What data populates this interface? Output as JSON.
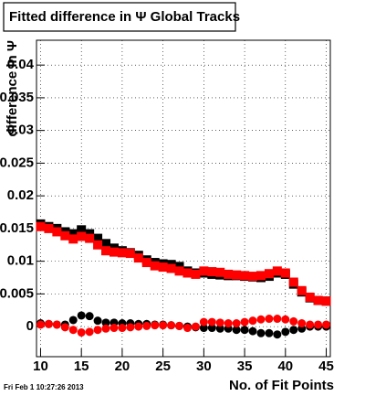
{
  "chart_data": {
    "type": "scatter",
    "title": "Fitted difference in Ψ   Global Tracks",
    "x_label": "No. of Fit Points",
    "y_label": "difference in Ψ",
    "footer": "Fri Feb  1 10:27:26 2013",
    "x": [
      10,
      11,
      12,
      13,
      14,
      15,
      16,
      17,
      18,
      19,
      20,
      21,
      22,
      23,
      24,
      25,
      26,
      27,
      28,
      29,
      30,
      31,
      32,
      33,
      34,
      35,
      36,
      37,
      38,
      39,
      40,
      41,
      42,
      43,
      44,
      45
    ],
    "series": [
      {
        "color": "#000000",
        "marker": "square",
        "values": [
          0.0157,
          0.0153,
          0.015,
          0.0145,
          0.0142,
          0.0148,
          0.0142,
          0.0135,
          0.0127,
          0.012,
          0.0116,
          0.0113,
          0.0109,
          0.0102,
          0.0098,
          0.0096,
          0.0095,
          0.0092,
          0.0085,
          0.0082,
          0.0082,
          0.008,
          0.0079,
          0.0078,
          0.0078,
          0.0077,
          0.0076,
          0.0075,
          0.0077,
          0.0082,
          0.008,
          0.0065,
          0.0053,
          0.0044,
          0.004,
          0.0039
        ]
      },
      {
        "color": "#ff0000",
        "marker": "square",
        "values": [
          0.0153,
          0.015,
          0.0145,
          0.0139,
          0.0134,
          0.0138,
          0.0135,
          0.0125,
          0.0116,
          0.0114,
          0.0113,
          0.0112,
          0.0105,
          0.0098,
          0.0093,
          0.0091,
          0.0089,
          0.0085,
          0.0082,
          0.008,
          0.0085,
          0.0084,
          0.0083,
          0.008,
          0.0079,
          0.0078,
          0.0077,
          0.0078,
          0.0081,
          0.0085,
          0.0082,
          0.0068,
          0.0055,
          0.0045,
          0.004,
          0.0039
        ]
      },
      {
        "color": "#000000",
        "marker": "circle",
        "values": [
          0.0005,
          0.0004,
          0.0003,
          0.0003,
          0.001,
          0.0017,
          0.0016,
          0.0009,
          0.0006,
          0.0006,
          0.0005,
          0.0005,
          0.0004,
          0.0004,
          0.0003,
          0.0003,
          0.0002,
          0.0001,
          0,
          -0.0001,
          -0.0002,
          -0.0002,
          -0.0003,
          -0.0003,
          -0.0005,
          -0.0005,
          -0.0007,
          -0.001,
          -0.001,
          -0.0012,
          -0.0008,
          -0.0005,
          -0.0003,
          0,
          0,
          0
        ]
      },
      {
        "color": "#ff0000",
        "marker": "circle",
        "values": [
          0.0003,
          0.0004,
          0.0003,
          -0.0001,
          -0.0005,
          -0.0009,
          -0.0008,
          -0.0005,
          -0.0003,
          -0.0002,
          -0.0002,
          -0.0001,
          0,
          0.0001,
          0.0002,
          0.0002,
          0.0002,
          0.0001,
          -0.0002,
          0,
          0.0007,
          0.0007,
          0.0006,
          0.0005,
          0.0005,
          0.0007,
          0.0009,
          0.0011,
          0.0012,
          0.0012,
          0.0011,
          0.0008,
          0.0005,
          0.0003,
          0.0003,
          0.0003
        ]
      }
    ],
    "xlim": [
      9.5,
      45.5
    ],
    "ylim": [
      -0.0046,
      0.0438
    ],
    "xticks": [
      10,
      15,
      20,
      25,
      30,
      35,
      40,
      45
    ],
    "yticks": [
      0,
      0.005,
      0.01,
      0.015,
      0.02,
      0.025,
      0.03,
      0.035,
      0.04
    ],
    "grid": true
  }
}
